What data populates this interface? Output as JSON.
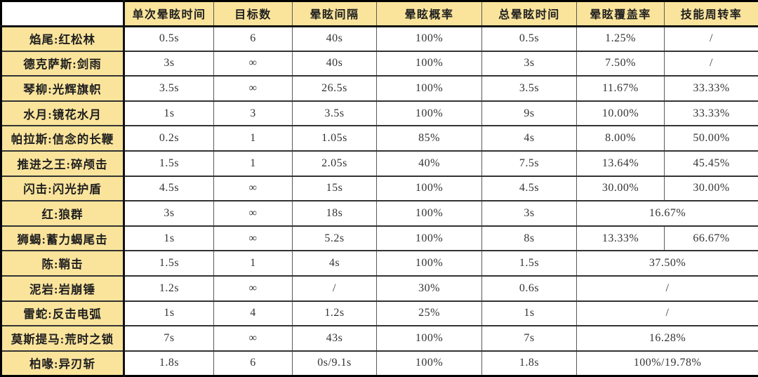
{
  "colors": {
    "header_bg": "#FAE49C",
    "corner_bg": "#FFFFFF",
    "outer_border": "#000000",
    "inner_border_vertical": "#5A5A5A",
    "inner_border_horizontal": "#333333",
    "heavy_border": "#111111",
    "header_text": "#1F1F1F",
    "cell_text": "#333333"
  },
  "chart_data": {
    "type": "table",
    "corner_label": "",
    "columns": [
      "单次晕眩时间",
      "目标数",
      "晕眩间隔",
      "晕眩概率",
      "总晕眩时间",
      "晕眩覆盖率",
      "技能周转率"
    ],
    "rows": [
      {
        "label": "焰尾:红松林",
        "cells": [
          "0.5s",
          "6",
          "40s",
          "100%",
          "0.5s",
          "1.25%",
          "/"
        ]
      },
      {
        "label": "德克萨斯:剑雨",
        "cells": [
          "3s",
          "∞",
          "40s",
          "100%",
          "3s",
          "7.50%",
          "/"
        ]
      },
      {
        "label": "琴柳:光辉旗帜",
        "cells": [
          "3.5s",
          "∞",
          "26.5s",
          "100%",
          "3.5s",
          "11.67%",
          "33.33%"
        ]
      },
      {
        "label": "水月:镜花水月",
        "cells": [
          "1s",
          "3",
          "3.5s",
          "100%",
          "9s",
          "10.00%",
          "33.33%"
        ]
      },
      {
        "label": "帕拉斯:信念的长鞭",
        "cells": [
          "0.2s",
          "1",
          "1.05s",
          "85%",
          "4s",
          "8.00%",
          "50.00%"
        ]
      },
      {
        "label": "推进之王:碎颅击",
        "cells": [
          "1.5s",
          "1",
          "2.05s",
          "40%",
          "7.5s",
          "13.64%",
          "45.45%"
        ]
      },
      {
        "label": "闪击:闪光护盾",
        "cells": [
          "4.5s",
          "∞",
          "15s",
          "100%",
          "4.5s",
          "30.00%",
          "30.00%"
        ]
      },
      {
        "label": "红:狼群",
        "merge_last_two": true,
        "cells": [
          "3s",
          "∞",
          "18s",
          "100%",
          "3s",
          "16.67%"
        ]
      },
      {
        "label": "狮蝎:蓄力蝎尾击",
        "cells": [
          "1s",
          "∞",
          "5.2s",
          "100%",
          "8s",
          "13.33%",
          "66.67%"
        ]
      },
      {
        "label": "陈:鞘击",
        "merge_last_two": true,
        "cells": [
          "1.5s",
          "1",
          "4s",
          "100%",
          "1.5s",
          "37.50%"
        ]
      },
      {
        "label": "泥岩:岩崩锤",
        "merge_last_two": true,
        "cells": [
          "1.2s",
          "∞",
          "/",
          "30%",
          "0.6s",
          "/"
        ]
      },
      {
        "label": "雷蛇:反击电弧",
        "merge_last_two": true,
        "cells": [
          "1s",
          "4",
          "1.2s",
          "25%",
          "1s",
          "/"
        ]
      },
      {
        "label": "莫斯提马:荒时之锁",
        "merge_last_two": true,
        "cells": [
          "7s",
          "∞",
          "43s",
          "100%",
          "7s",
          "16.28%"
        ]
      },
      {
        "label": "柏喙:异刃斩",
        "merge_last_two": true,
        "cells": [
          "1.8s",
          "6",
          "0s/9.1s",
          "100%",
          "1.8s",
          "100%/19.78%"
        ]
      }
    ]
  }
}
